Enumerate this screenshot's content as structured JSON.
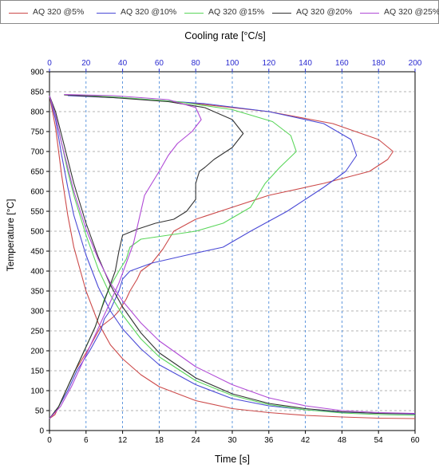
{
  "chart_data": {
    "type": "line",
    "top_axis_label": "Cooling rate [°C/s]",
    "xlabel": "Time [s]",
    "ylabel": "Temperature [°C]",
    "xlim": [
      0,
      60
    ],
    "ylim": [
      0,
      900
    ],
    "x2lim": [
      0,
      200
    ],
    "x_ticks": [
      "0",
      "6",
      "12",
      "18",
      "24",
      "30",
      "36",
      "42",
      "48",
      "54",
      "60"
    ],
    "x2_ticks": [
      "0",
      "20",
      "40",
      "60",
      "80",
      "100",
      "120",
      "140",
      "160",
      "180",
      "200"
    ],
    "y_ticks": [
      "0",
      "50",
      "100",
      "150",
      "200",
      "250",
      "300",
      "350",
      "400",
      "450",
      "500",
      "550",
      "600",
      "650",
      "700",
      "750",
      "800",
      "850",
      "900"
    ],
    "grid": true,
    "legend_position": "top",
    "series": [
      {
        "name": "AQ 320 @5%",
        "color": "#cc4a4a",
        "cooling_curve": [
          [
            0,
            840
          ],
          [
            1,
            760
          ],
          [
            2,
            640
          ],
          [
            3,
            540
          ],
          [
            4,
            460
          ],
          [
            6,
            350
          ],
          [
            8,
            270
          ],
          [
            10,
            215
          ],
          [
            12,
            180
          ],
          [
            15,
            140
          ],
          [
            18,
            110
          ],
          [
            24,
            75
          ],
          [
            30,
            55
          ],
          [
            36,
            45
          ],
          [
            42,
            38
          ],
          [
            48,
            34
          ],
          [
            54,
            31
          ],
          [
            60,
            30
          ]
        ],
        "cooling_rate": [
          [
            0,
            30
          ],
          [
            3,
            40
          ],
          [
            8,
            90
          ],
          [
            14,
            150
          ],
          [
            22,
            210
          ],
          [
            28,
            260
          ],
          [
            35,
            285
          ],
          [
            38,
            300
          ],
          [
            42,
            330
          ],
          [
            44,
            350
          ],
          [
            48,
            380
          ],
          [
            50,
            400
          ],
          [
            56,
            420
          ],
          [
            62,
            455
          ],
          [
            68,
            500
          ],
          [
            80,
            530
          ],
          [
            100,
            560
          ],
          [
            120,
            590
          ],
          [
            150,
            620
          ],
          [
            175,
            650
          ],
          [
            185,
            680
          ],
          [
            188,
            700
          ],
          [
            180,
            730
          ],
          [
            155,
            770
          ],
          [
            120,
            800
          ],
          [
            80,
            820
          ],
          [
            40,
            835
          ],
          [
            10,
            842
          ]
        ]
      },
      {
        "name": "AQ 320 @10%",
        "color": "#4a4ad6",
        "cooling_curve": [
          [
            0,
            840
          ],
          [
            1,
            780
          ],
          [
            2,
            690
          ],
          [
            3,
            610
          ],
          [
            4,
            540
          ],
          [
            6,
            440
          ],
          [
            8,
            360
          ],
          [
            10,
            300
          ],
          [
            12,
            255
          ],
          [
            15,
            205
          ],
          [
            18,
            165
          ],
          [
            24,
            115
          ],
          [
            30,
            80
          ],
          [
            36,
            62
          ],
          [
            42,
            52
          ],
          [
            48,
            46
          ],
          [
            54,
            43
          ],
          [
            60,
            41
          ]
        ],
        "cooling_rate": [
          [
            0,
            30
          ],
          [
            5,
            60
          ],
          [
            10,
            100
          ],
          [
            15,
            150
          ],
          [
            22,
            200
          ],
          [
            28,
            250
          ],
          [
            30,
            280
          ],
          [
            33,
            300
          ],
          [
            35,
            320
          ],
          [
            38,
            350
          ],
          [
            40,
            380
          ],
          [
            44,
            400
          ],
          [
            56,
            420
          ],
          [
            75,
            440
          ],
          [
            95,
            460
          ],
          [
            110,
            500
          ],
          [
            130,
            550
          ],
          [
            150,
            610
          ],
          [
            162,
            650
          ],
          [
            168,
            690
          ],
          [
            165,
            730
          ],
          [
            150,
            770
          ],
          [
            120,
            800
          ],
          [
            85,
            820
          ],
          [
            45,
            833
          ],
          [
            10,
            840
          ]
        ]
      },
      {
        "name": "AQ 320 @15%",
        "color": "#5ad65a",
        "cooling_curve": [
          [
            0,
            840
          ],
          [
            1,
            790
          ],
          [
            2,
            720
          ],
          [
            3,
            650
          ],
          [
            4,
            590
          ],
          [
            6,
            490
          ],
          [
            8,
            405
          ],
          [
            10,
            340
          ],
          [
            12,
            290
          ],
          [
            15,
            230
          ],
          [
            18,
            185
          ],
          [
            24,
            125
          ],
          [
            30,
            88
          ],
          [
            36,
            65
          ],
          [
            42,
            52
          ],
          [
            48,
            44
          ],
          [
            54,
            40
          ],
          [
            60,
            38
          ]
        ],
        "cooling_rate": [
          [
            0,
            30
          ],
          [
            5,
            60
          ],
          [
            10,
            110
          ],
          [
            15,
            160
          ],
          [
            20,
            210
          ],
          [
            25,
            260
          ],
          [
            28,
            300
          ],
          [
            30,
            330
          ],
          [
            33,
            360
          ],
          [
            38,
            400
          ],
          [
            42,
            430
          ],
          [
            44,
            460
          ],
          [
            50,
            480
          ],
          [
            65,
            490
          ],
          [
            80,
            500
          ],
          [
            95,
            520
          ],
          [
            110,
            560
          ],
          [
            118,
            620
          ],
          [
            126,
            660
          ],
          [
            135,
            700
          ],
          [
            132,
            740
          ],
          [
            122,
            775
          ],
          [
            100,
            805
          ],
          [
            70,
            825
          ],
          [
            35,
            837
          ],
          [
            8,
            842
          ]
        ]
      },
      {
        "name": "AQ 320 @20%",
        "color": "#333333",
        "cooling_curve": [
          [
            0,
            840
          ],
          [
            1,
            800
          ],
          [
            2,
            740
          ],
          [
            3,
            680
          ],
          [
            4,
            620
          ],
          [
            6,
            520
          ],
          [
            8,
            435
          ],
          [
            10,
            365
          ],
          [
            12,
            310
          ],
          [
            15,
            245
          ],
          [
            18,
            195
          ],
          [
            24,
            132
          ],
          [
            30,
            92
          ],
          [
            36,
            68
          ],
          [
            42,
            55
          ],
          [
            48,
            47
          ],
          [
            54,
            43
          ],
          [
            60,
            42
          ]
        ],
        "cooling_rate": [
          [
            0,
            30
          ],
          [
            5,
            60
          ],
          [
            10,
            110
          ],
          [
            15,
            160
          ],
          [
            20,
            210
          ],
          [
            25,
            260
          ],
          [
            28,
            300
          ],
          [
            32,
            350
          ],
          [
            36,
            400
          ],
          [
            38,
            450
          ],
          [
            40,
            490
          ],
          [
            48,
            505
          ],
          [
            58,
            520
          ],
          [
            68,
            530
          ],
          [
            75,
            550
          ],
          [
            80,
            580
          ],
          [
            80,
            620
          ],
          [
            82,
            650
          ],
          [
            85,
            660
          ],
          [
            90,
            680
          ],
          [
            100,
            710
          ],
          [
            106,
            745
          ],
          [
            100,
            780
          ],
          [
            85,
            810
          ],
          [
            65,
            825
          ],
          [
            35,
            835
          ],
          [
            8,
            842
          ]
        ]
      },
      {
        "name": "AQ 320 @25%",
        "color": "#b04ad6",
        "cooling_curve": [
          [
            0,
            840
          ],
          [
            1,
            790
          ],
          [
            2,
            720
          ],
          [
            3,
            660
          ],
          [
            4,
            600
          ],
          [
            6,
            505
          ],
          [
            8,
            430
          ],
          [
            10,
            370
          ],
          [
            12,
            325
          ],
          [
            15,
            270
          ],
          [
            18,
            225
          ],
          [
            24,
            160
          ],
          [
            30,
            115
          ],
          [
            36,
            82
          ],
          [
            42,
            62
          ],
          [
            48,
            50
          ],
          [
            54,
            45
          ],
          [
            60,
            43
          ]
        ],
        "cooling_rate": [
          [
            0,
            30
          ],
          [
            6,
            60
          ],
          [
            12,
            110
          ],
          [
            18,
            170
          ],
          [
            24,
            230
          ],
          [
            30,
            290
          ],
          [
            34,
            330
          ],
          [
            38,
            370
          ],
          [
            42,
            420
          ],
          [
            46,
            470
          ],
          [
            48,
            510
          ],
          [
            50,
            550
          ],
          [
            52,
            590
          ],
          [
            56,
            620
          ],
          [
            60,
            650
          ],
          [
            65,
            690
          ],
          [
            70,
            720
          ],
          [
            78,
            750
          ],
          [
            83,
            780
          ],
          [
            80,
            810
          ],
          [
            65,
            830
          ],
          [
            35,
            840
          ],
          [
            8,
            843
          ]
        ]
      }
    ]
  }
}
